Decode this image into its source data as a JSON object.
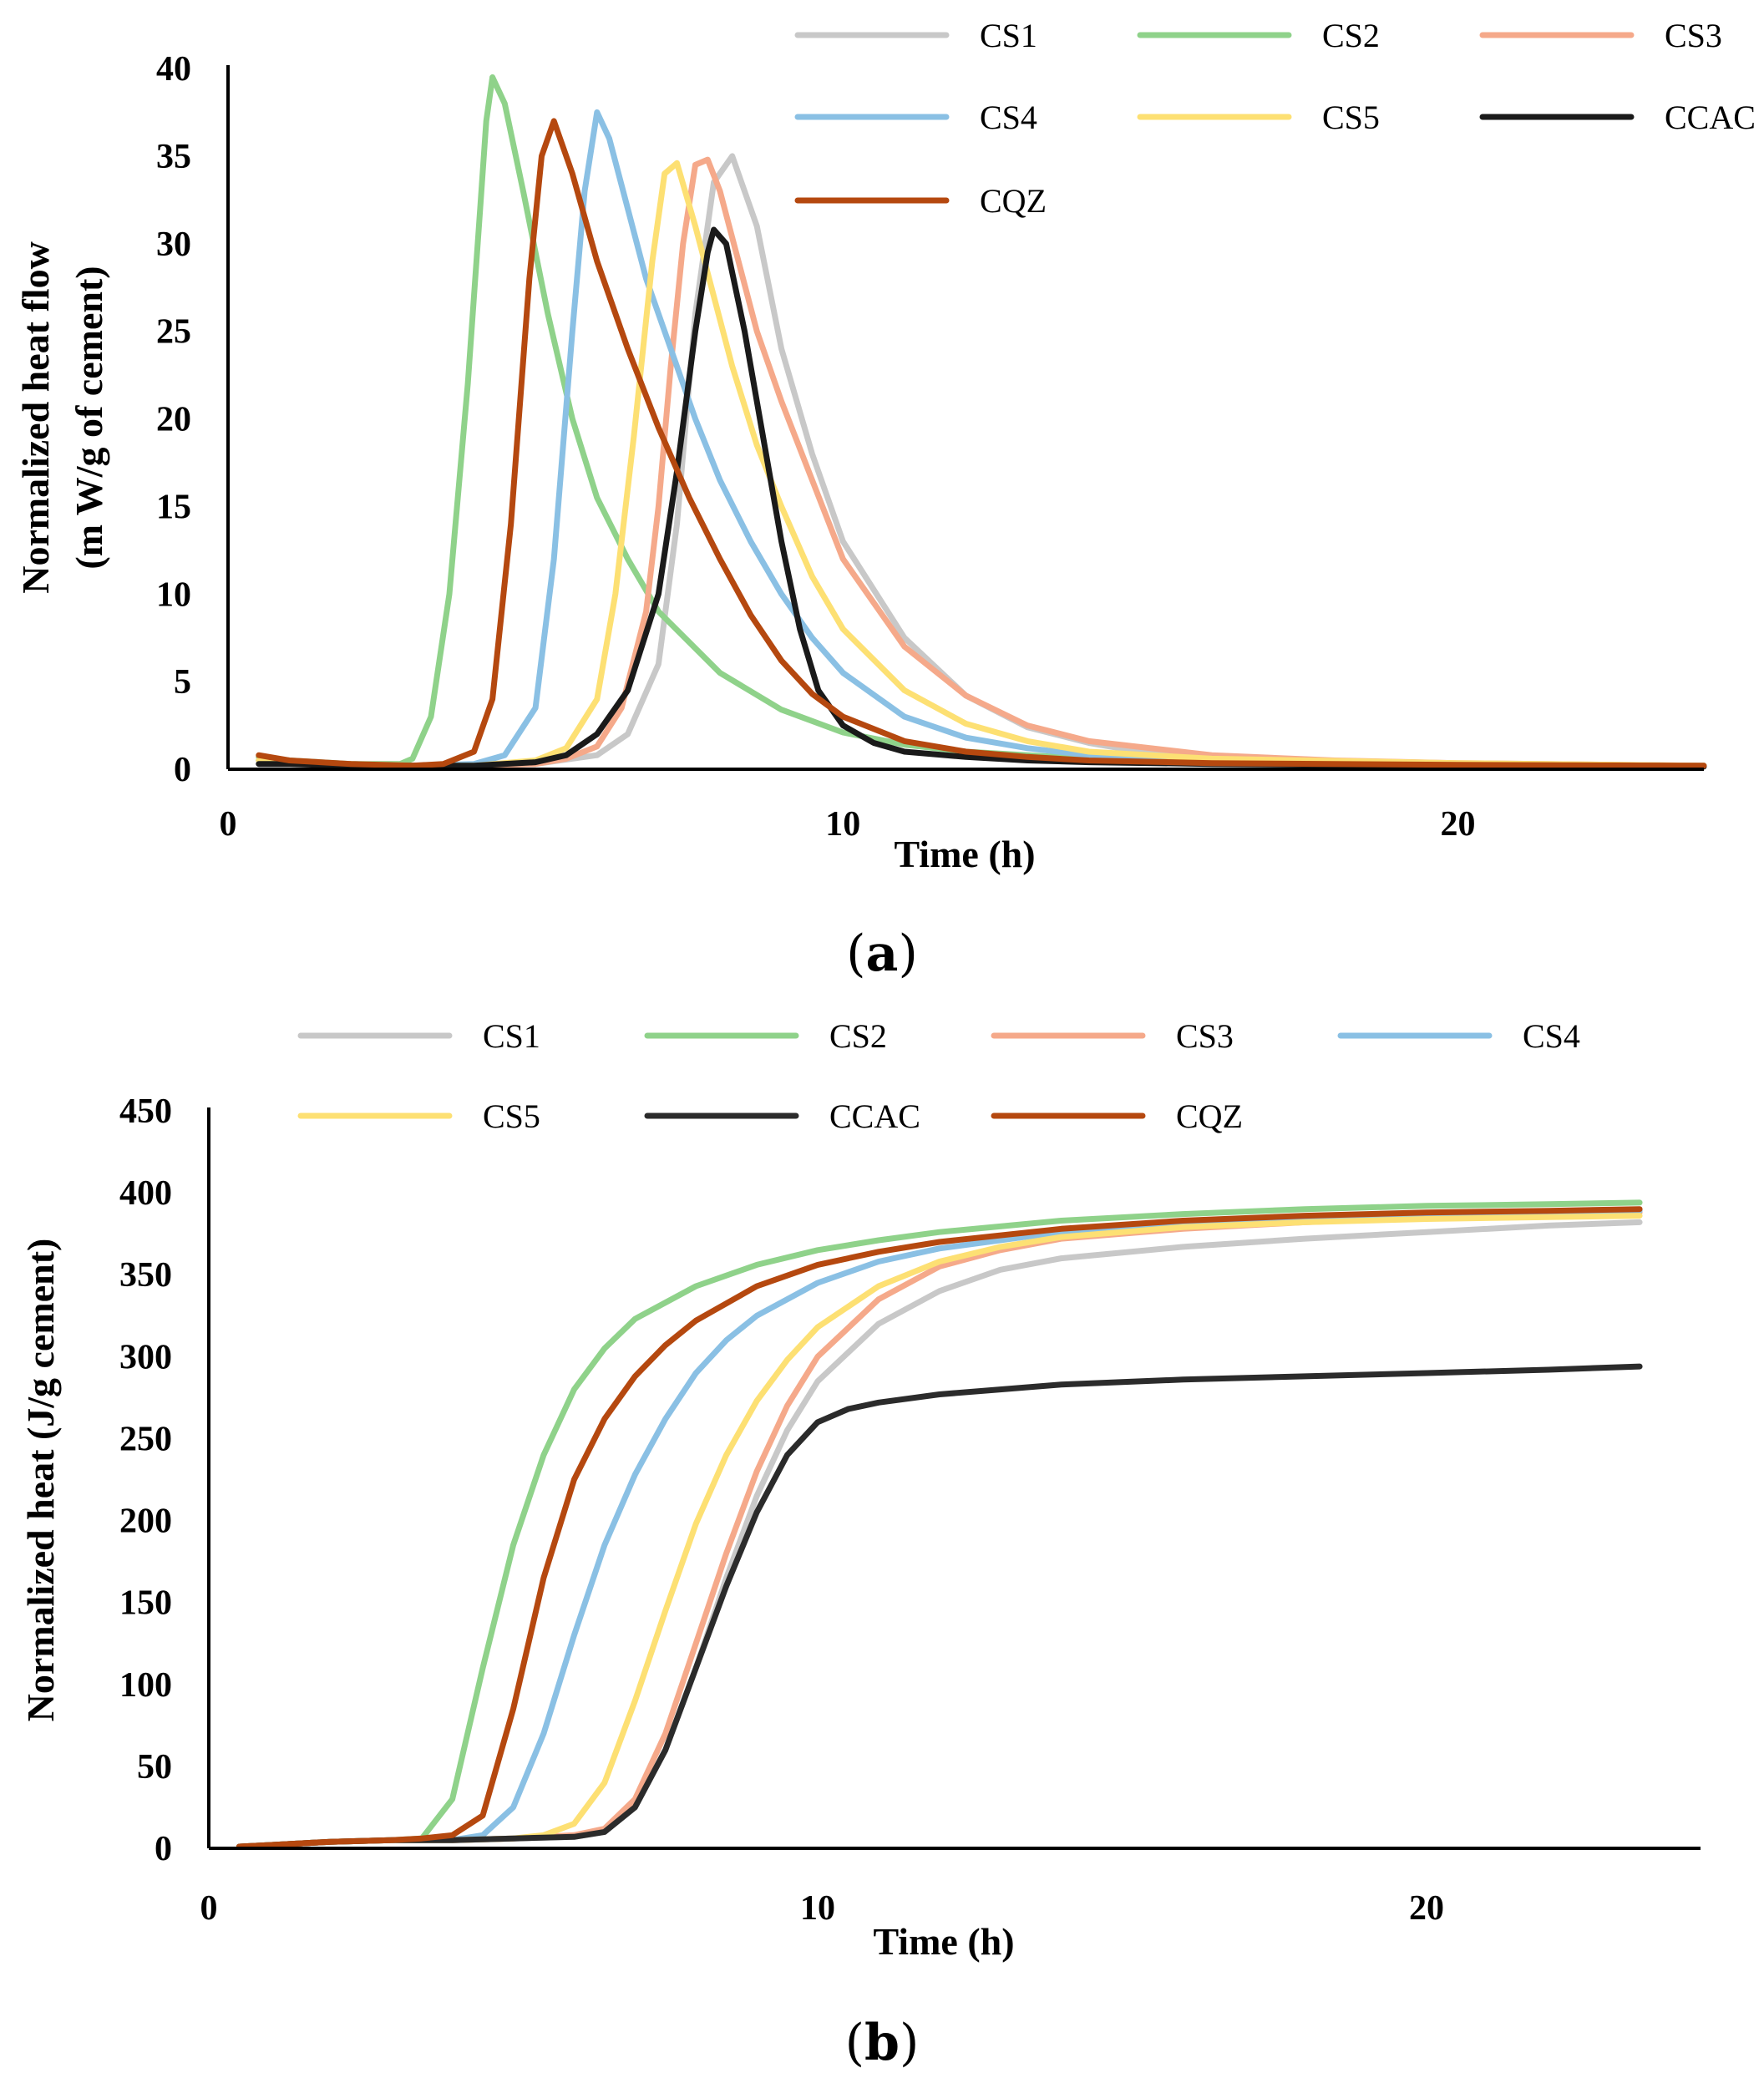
{
  "figure": {
    "caption_a": "a",
    "caption_b": "b"
  },
  "chart_data": [
    {
      "id": "a",
      "type": "line",
      "title": "",
      "xlabel": "Time (h)",
      "ylabel_line1": "Normalized heat flow",
      "ylabel_line2": "(m W/g of cement)",
      "xlim": [
        0,
        24
      ],
      "ylim": [
        0,
        40
      ],
      "xticks": [
        0,
        10,
        20
      ],
      "yticks": [
        0,
        5,
        10,
        15,
        20,
        25,
        30,
        35,
        40
      ],
      "legend_position": "top-right",
      "legend_columns": 3,
      "series": [
        {
          "name": "CS1",
          "color": "#c8c8c8",
          "x": [
            0.5,
            1,
            2,
            3,
            4,
            5,
            6,
            6.5,
            7,
            7.3,
            7.6,
            7.9,
            8.2,
            8.6,
            9,
            9.5,
            10,
            11,
            12,
            13,
            14,
            15,
            16,
            18,
            20,
            22,
            24
          ],
          "y": [
            0.5,
            0.4,
            0.3,
            0.2,
            0.2,
            0.3,
            0.8,
            2,
            6,
            14,
            26,
            33.5,
            35,
            31,
            24,
            18,
            13,
            7.5,
            4.2,
            2.4,
            1.5,
            0.9,
            0.6,
            0.4,
            0.3,
            0.25,
            0.2
          ]
        },
        {
          "name": "CS2",
          "color": "#8fd28a",
          "x": [
            0.5,
            1,
            2,
            2.8,
            3,
            3.3,
            3.6,
            3.9,
            4.1,
            4.2,
            4.3,
            4.5,
            4.8,
            5.2,
            5.6,
            6,
            6.5,
            7,
            8,
            9,
            10,
            11,
            12,
            14,
            16,
            20,
            24
          ],
          "y": [
            0.7,
            0.5,
            0.3,
            0.3,
            0.6,
            3,
            10,
            22,
            32,
            37,
            39.5,
            38,
            33,
            26,
            20,
            15.5,
            12,
            9,
            5.5,
            3.4,
            2.1,
            1.4,
            1,
            0.6,
            0.4,
            0.3,
            0.2
          ]
        },
        {
          "name": "CS3",
          "color": "#f5a98a",
          "x": [
            0.5,
            1,
            2,
            3,
            4,
            5,
            5.5,
            6,
            6.4,
            6.8,
            7,
            7.2,
            7.4,
            7.6,
            7.8,
            8,
            8.3,
            8.6,
            9,
            9.5,
            10,
            11,
            12,
            13,
            14,
            16,
            18,
            20,
            24
          ],
          "y": [
            0.5,
            0.4,
            0.3,
            0.2,
            0.2,
            0.3,
            0.6,
            1.3,
            3.5,
            9,
            15,
            23,
            30,
            34.5,
            34.8,
            33,
            29,
            25,
            21,
            16.5,
            12,
            7,
            4.2,
            2.5,
            1.6,
            0.8,
            0.5,
            0.35,
            0.2
          ]
        },
        {
          "name": "CS4",
          "color": "#8ac0e4",
          "x": [
            0.5,
            1,
            2,
            3,
            4,
            4.5,
            5,
            5.3,
            5.6,
            5.8,
            6,
            6.2,
            6.5,
            6.8,
            7.2,
            7.6,
            8,
            8.5,
            9,
            9.5,
            10,
            11,
            12,
            13,
            14,
            16,
            20,
            24
          ],
          "y": [
            0.5,
            0.4,
            0.3,
            0.2,
            0.3,
            0.8,
            3.5,
            12,
            25,
            33,
            37.5,
            36,
            32,
            28,
            24,
            20,
            16.5,
            13,
            10,
            7.5,
            5.5,
            3,
            1.8,
            1.2,
            0.8,
            0.5,
            0.3,
            0.2
          ]
        },
        {
          "name": "CS5",
          "color": "#fde073",
          "x": [
            0.5,
            1,
            2,
            3,
            4,
            5,
            5.5,
            6,
            6.3,
            6.6,
            6.9,
            7.1,
            7.3,
            7.6,
            7.9,
            8.2,
            8.6,
            9,
            9.5,
            10,
            11,
            12,
            13,
            14,
            16,
            20,
            24
          ],
          "y": [
            0.5,
            0.4,
            0.3,
            0.2,
            0.2,
            0.5,
            1.2,
            4,
            10,
            19,
            29,
            34,
            34.6,
            31,
            27,
            23,
            18.5,
            15,
            11,
            8,
            4.5,
            2.6,
            1.6,
            1,
            0.6,
            0.35,
            0.2
          ]
        },
        {
          "name": "CCAC",
          "color": "#1a1a1a",
          "x": [
            0.5,
            1,
            2,
            3,
            4,
            5,
            5.5,
            6,
            6.5,
            7,
            7.3,
            7.6,
            7.8,
            7.9,
            8.1,
            8.4,
            8.7,
            9,
            9.3,
            9.6,
            10,
            10.5,
            11,
            12,
            13,
            14,
            16,
            20,
            24
          ],
          "y": [
            0.3,
            0.3,
            0.2,
            0.2,
            0.2,
            0.4,
            0.8,
            2,
            4.5,
            10,
            17,
            25,
            29.5,
            30.8,
            30,
            25,
            19,
            13,
            8,
            4.5,
            2.5,
            1.5,
            1,
            0.7,
            0.5,
            0.4,
            0.3,
            0.2,
            0.15
          ]
        },
        {
          "name": "CQZ",
          "color": "#b5480f",
          "x": [
            0.5,
            1,
            2,
            3,
            3.5,
            4,
            4.3,
            4.6,
            4.9,
            5.1,
            5.3,
            5.6,
            6,
            6.5,
            7,
            7.5,
            8,
            8.5,
            9,
            9.5,
            10,
            11,
            12,
            13,
            14,
            16,
            20,
            24
          ],
          "y": [
            0.8,
            0.5,
            0.3,
            0.2,
            0.3,
            1,
            4,
            14,
            28,
            35,
            37,
            34,
            29,
            24,
            19.5,
            15.5,
            12,
            8.8,
            6.2,
            4.3,
            3,
            1.6,
            1,
            0.7,
            0.5,
            0.35,
            0.25,
            0.2
          ]
        }
      ]
    },
    {
      "id": "b",
      "type": "line",
      "title": "",
      "xlabel": "Time (h)",
      "ylabel": "Normalized heat (J/g cement)",
      "xlim": [
        0,
        24.5
      ],
      "ylim": [
        0,
        450
      ],
      "xticks": [
        0,
        10,
        20
      ],
      "yticks": [
        0,
        50,
        100,
        150,
        200,
        250,
        300,
        350,
        400,
        450
      ],
      "legend_position": "top-center",
      "legend_columns": 4,
      "series": [
        {
          "name": "CS1",
          "color": "#c8c8c8",
          "x": [
            0.5,
            1,
            2,
            3,
            4,
            5,
            6,
            6.5,
            7,
            7.5,
            8,
            8.5,
            9,
            9.5,
            10,
            11,
            12,
            13,
            14,
            16,
            18,
            20,
            22,
            23.5
          ],
          "y": [
            1,
            2,
            4,
            5,
            5,
            6,
            7,
            10,
            25,
            60,
            110,
            165,
            215,
            255,
            285,
            320,
            340,
            353,
            360,
            367,
            372,
            376,
            380,
            382
          ]
        },
        {
          "name": "CS2",
          "color": "#8fd28a",
          "x": [
            0.5,
            1,
            2,
            3,
            3.5,
            4,
            4.5,
            5,
            5.5,
            6,
            6.5,
            7,
            8,
            9,
            10,
            11,
            12,
            14,
            16,
            18,
            20,
            22,
            23.5
          ],
          "y": [
            1,
            2,
            4,
            5,
            6,
            30,
            110,
            185,
            240,
            280,
            305,
            323,
            343,
            356,
            365,
            371,
            376,
            383,
            387,
            390,
            392,
            393,
            394
          ]
        },
        {
          "name": "CS3",
          "color": "#f5a98a",
          "x": [
            0.5,
            1,
            2,
            3,
            4,
            5,
            6,
            6.5,
            7,
            7.5,
            8,
            8.5,
            9,
            9.5,
            10,
            11,
            12,
            13,
            14,
            16,
            18,
            20,
            22,
            23.5
          ],
          "y": [
            1,
            2,
            4,
            5,
            5,
            6,
            8,
            12,
            30,
            70,
            125,
            180,
            230,
            270,
            300,
            335,
            355,
            365,
            372,
            378,
            382,
            385,
            387,
            388
          ]
        },
        {
          "name": "CS4",
          "color": "#8ac0e4",
          "x": [
            0.5,
            1,
            2,
            3,
            4,
            4.5,
            5,
            5.5,
            6,
            6.5,
            7,
            7.5,
            8,
            8.5,
            9,
            10,
            11,
            12,
            14,
            16,
            18,
            20,
            23.5
          ],
          "y": [
            1,
            2,
            4,
            5,
            5,
            8,
            25,
            70,
            130,
            185,
            228,
            262,
            290,
            310,
            325,
            345,
            358,
            366,
            376,
            382,
            385,
            387,
            389
          ]
        },
        {
          "name": "CS5",
          "color": "#fde073",
          "x": [
            0.5,
            1,
            2,
            3,
            4,
            5,
            5.5,
            6,
            6.5,
            7,
            7.5,
            8,
            8.5,
            9,
            9.5,
            10,
            11,
            12,
            13,
            14,
            16,
            18,
            20,
            23.5
          ],
          "y": [
            1,
            2,
            4,
            5,
            5,
            6,
            8,
            15,
            40,
            90,
            145,
            198,
            240,
            273,
            298,
            318,
            343,
            358,
            367,
            373,
            379,
            382,
            384,
            386
          ]
        },
        {
          "name": "CCAC",
          "color": "#2b2b2b",
          "x": [
            0.5,
            1,
            2,
            3,
            4,
            5,
            6,
            6.5,
            7,
            7.5,
            8,
            8.5,
            9,
            9.5,
            10,
            10.5,
            11,
            12,
            13,
            14,
            16,
            18,
            20,
            22,
            23.5
          ],
          "y": [
            1,
            2,
            4,
            5,
            5,
            6,
            7,
            10,
            25,
            60,
            110,
            160,
            205,
            240,
            260,
            268,
            272,
            277,
            280,
            283,
            286,
            288,
            290,
            292,
            294
          ]
        },
        {
          "name": "CQZ",
          "color": "#b5480f",
          "x": [
            0.5,
            1,
            2,
            3,
            3.5,
            4,
            4.5,
            5,
            5.5,
            6,
            6.5,
            7,
            7.5,
            8,
            9,
            10,
            11,
            12,
            14,
            16,
            18,
            20,
            22,
            23.5
          ],
          "y": [
            1,
            2,
            4,
            5,
            6,
            8,
            20,
            85,
            165,
            225,
            262,
            288,
            307,
            322,
            343,
            356,
            364,
            370,
            378,
            383,
            386,
            388,
            389,
            390
          ]
        }
      ]
    }
  ]
}
